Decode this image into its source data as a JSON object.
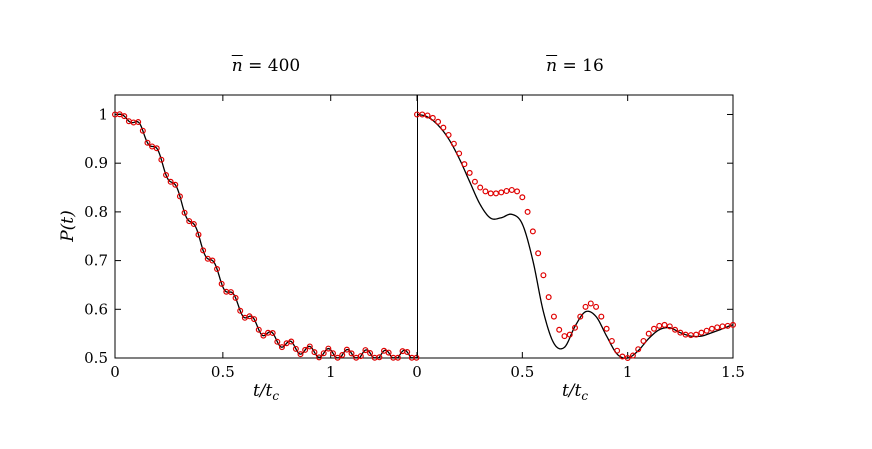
{
  "figure": {
    "background": "#ffffff",
    "axis_color": "#000000"
  },
  "chart_data": [
    {
      "type": "line",
      "panel": "left",
      "title": {
        "var": "n",
        "bar": true,
        "eq": " = 400"
      },
      "ylabel": "P(t)",
      "xlabel": {
        "main": "t/t",
        "sub": "c"
      },
      "xlim": [
        0,
        1.4
      ],
      "ylim": [
        0.5,
        1.04
      ],
      "xticks": [
        0,
        0.5,
        1
      ],
      "xtick_labels": [
        "0",
        "0.5",
        "1"
      ],
      "yticks": [
        0.5,
        0.6,
        0.7,
        0.8,
        0.9,
        1
      ],
      "ytick_labels": [
        "0.5",
        "0.6",
        "0.7",
        "0.8",
        "0.9",
        "1"
      ],
      "line_color": "#000000",
      "marker_color": "#e00000",
      "curve": {
        "x0": 0,
        "x_step": 0.05,
        "y": [
          1.0,
          0.995,
          0.979,
          0.952,
          0.916,
          0.873,
          0.828,
          0.781,
          0.736,
          0.694,
          0.655,
          0.621,
          0.592,
          0.569,
          0.551,
          0.537,
          0.527,
          0.519,
          0.514,
          0.511,
          0.509,
          0.508,
          0.507,
          0.507,
          0.506,
          0.506,
          0.506,
          0.506,
          0.506
        ]
      },
      "ripple": {
        "amplitude": 0.01,
        "period": 0.088,
        "ramp": 0.12,
        "floor": 0.5005
      },
      "markers": {
        "x0": 0,
        "x_step": 0.0215,
        "follow_curve": true
      }
    },
    {
      "type": "line",
      "panel": "right",
      "title": {
        "var": "n",
        "bar": true,
        "eq": " = 16"
      },
      "xlabel": {
        "main": "t/t",
        "sub": "c"
      },
      "xlim": [
        0,
        1.5
      ],
      "ylim": [
        0.5,
        1.04
      ],
      "xticks": [
        0,
        0.5,
        1,
        1.5
      ],
      "xtick_labels": [
        "0",
        "0.5",
        "1",
        "1.5"
      ],
      "yticks": [
        0.5,
        0.6,
        0.7,
        0.8,
        0.9,
        1
      ],
      "ytick_labels": [],
      "line_color": "#000000",
      "marker_color": "#e00000",
      "curve": {
        "x0": 0,
        "x_step": 0.05,
        "y": [
          1.0,
          0.995,
          0.978,
          0.95,
          0.91,
          0.862,
          0.815,
          0.787,
          0.788,
          0.795,
          0.775,
          0.7,
          0.595,
          0.53,
          0.522,
          0.565,
          0.595,
          0.585,
          0.545,
          0.508,
          0.5,
          0.515,
          0.54,
          0.558,
          0.562,
          0.552,
          0.545,
          0.545,
          0.552,
          0.56,
          0.568
        ]
      },
      "markers": {
        "x0": 0,
        "x_step": 0.025,
        "y": [
          1.0,
          1.0,
          0.998,
          0.993,
          0.985,
          0.973,
          0.958,
          0.94,
          0.92,
          0.898,
          0.88,
          0.862,
          0.85,
          0.842,
          0.838,
          0.838,
          0.84,
          0.843,
          0.845,
          0.842,
          0.83,
          0.8,
          0.76,
          0.715,
          0.67,
          0.625,
          0.585,
          0.558,
          0.545,
          0.548,
          0.562,
          0.585,
          0.605,
          0.612,
          0.605,
          0.585,
          0.56,
          0.535,
          0.515,
          0.503,
          0.5,
          0.505,
          0.518,
          0.535,
          0.55,
          0.56,
          0.566,
          0.568,
          0.565,
          0.558,
          0.552,
          0.548,
          0.547,
          0.548,
          0.552,
          0.556,
          0.56,
          0.563,
          0.565,
          0.566,
          0.568
        ]
      }
    }
  ]
}
